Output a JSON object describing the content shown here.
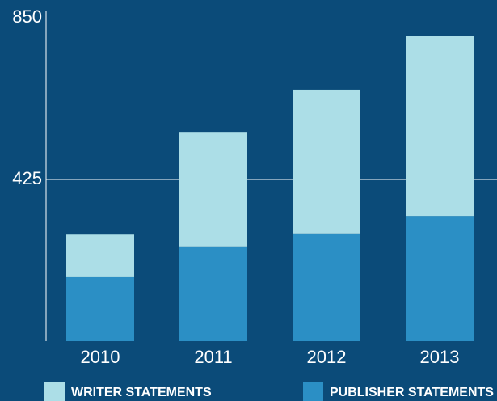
{
  "chart_data": {
    "type": "stacked_bar",
    "categories": [
      "2010",
      "2011",
      "2012",
      "2013"
    ],
    "series": [
      {
        "name": "PUBLISHER STATEMENTS",
        "color": "#2b8fc5",
        "values": [
          168,
          249,
          283,
          329
        ]
      },
      {
        "name": "WRITER STATEMENTS",
        "color": "#acdee7",
        "values": [
          112,
          301,
          378,
          474
        ]
      }
    ],
    "ylim": [
      0,
      850
    ],
    "yticks": [
      0,
      425,
      850
    ],
    "grid": true
  }
}
